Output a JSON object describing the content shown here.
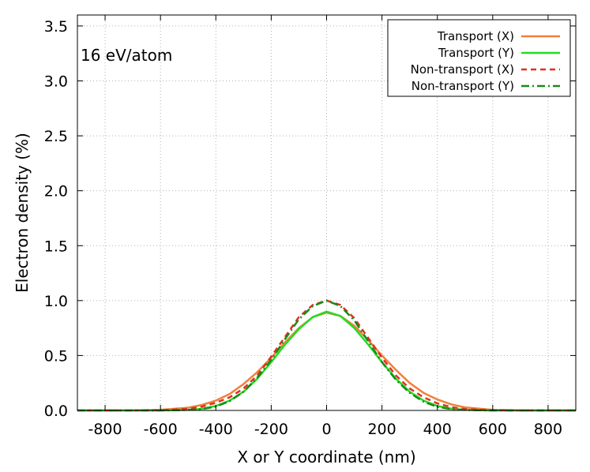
{
  "chart_data": {
    "type": "line",
    "xlabel": "X or Y coordinate (nm)",
    "ylabel": "Electron density (%)",
    "annotation": "16 eV/atom",
    "xlim": [
      -900,
      900
    ],
    "ylim": [
      0,
      3.6
    ],
    "x_ticks": [
      -800,
      -600,
      -400,
      -200,
      0,
      200,
      400,
      600,
      800
    ],
    "y_ticks": [
      0.0,
      0.5,
      1.0,
      1.5,
      2.0,
      2.5,
      3.0,
      3.5
    ],
    "x_tick_labels": [
      "-800",
      "-600",
      "-400",
      "-200",
      "0",
      "200",
      "400",
      "600",
      "800"
    ],
    "y_tick_labels": [
      "0.0",
      "0.5",
      "1.0",
      "1.5",
      "2.0",
      "2.5",
      "3.0",
      "3.5"
    ],
    "grid": true,
    "legend_position": "top-right",
    "x": [
      -900,
      -800,
      -700,
      -600,
      -500,
      -450,
      -400,
      -350,
      -300,
      -250,
      -200,
      -150,
      -100,
      -50,
      0,
      50,
      100,
      150,
      200,
      250,
      300,
      350,
      400,
      450,
      500,
      600,
      700,
      800,
      900
    ],
    "series": [
      {
        "name": "Transport (X)",
        "color": "#f0803c",
        "dash": "solid",
        "values": [
          0,
          0,
          0.001,
          0.005,
          0.025,
          0.05,
          0.09,
          0.15,
          0.24,
          0.35,
          0.48,
          0.62,
          0.75,
          0.85,
          0.89,
          0.86,
          0.77,
          0.64,
          0.5,
          0.37,
          0.25,
          0.16,
          0.1,
          0.055,
          0.028,
          0.006,
          0.001,
          0,
          0
        ]
      },
      {
        "name": "Transport (Y)",
        "color": "#22dd22",
        "dash": "solid",
        "values": [
          0,
          0,
          0,
          0,
          0.005,
          0.015,
          0.04,
          0.09,
          0.17,
          0.29,
          0.44,
          0.6,
          0.74,
          0.85,
          0.9,
          0.86,
          0.75,
          0.6,
          0.44,
          0.29,
          0.17,
          0.09,
          0.04,
          0.015,
          0.005,
          0,
          0,
          0,
          0
        ]
      },
      {
        "name": "Non-transport (X)",
        "color": "#e03020",
        "dash": "dashed",
        "values": [
          0,
          0,
          0,
          0.002,
          0.015,
          0.035,
          0.07,
          0.12,
          0.2,
          0.32,
          0.49,
          0.67,
          0.85,
          0.96,
          1.0,
          0.96,
          0.84,
          0.66,
          0.48,
          0.32,
          0.2,
          0.12,
          0.065,
          0.03,
          0.012,
          0.002,
          0,
          0,
          0
        ]
      },
      {
        "name": "Non-transport (Y)",
        "color": "#1a8a1a",
        "dash": "dashdot",
        "values": [
          0,
          0,
          0,
          0,
          0.004,
          0.012,
          0.035,
          0.085,
          0.17,
          0.3,
          0.46,
          0.65,
          0.83,
          0.95,
          1.0,
          0.95,
          0.82,
          0.63,
          0.44,
          0.28,
          0.16,
          0.08,
          0.032,
          0.012,
          0.004,
          0,
          0,
          0,
          0
        ]
      }
    ]
  }
}
